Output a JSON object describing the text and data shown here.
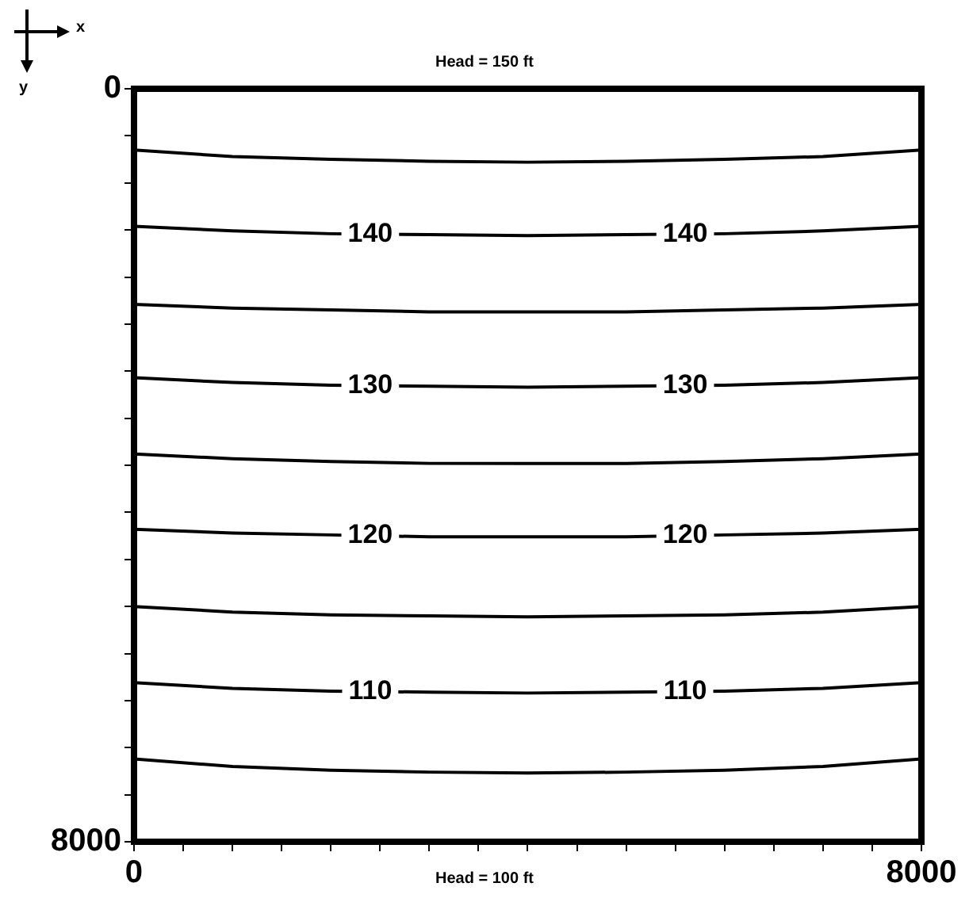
{
  "chart_data": {
    "type": "line",
    "title": "Head = 150 ft",
    "xlabel": "x",
    "ylabel": "y",
    "annotations": [
      "Head = 100 ft"
    ],
    "x": [
      0,
      1000,
      2000,
      3000,
      4000,
      5000,
      6000,
      7000,
      8000
    ],
    "xlim": [
      0,
      8000
    ],
    "ylim": [
      8000,
      0
    ],
    "xticks": [
      0,
      {
        "value": 500,
        "label": null
      },
      {
        "value": 1000,
        "label": null
      },
      {
        "value": 1500,
        "label": null
      },
      {
        "value": 2000,
        "label": null
      },
      {
        "value": 2500,
        "label": null
      },
      {
        "value": 3000,
        "label": null
      },
      {
        "value": 3500,
        "label": null
      },
      {
        "value": 4000,
        "label": null
      },
      {
        "value": 4500,
        "label": null
      },
      {
        "value": 5000,
        "label": null
      },
      {
        "value": 5500,
        "label": null
      },
      {
        "value": 6000,
        "label": null
      },
      {
        "value": 6500,
        "label": null
      },
      {
        "value": 7000,
        "label": null
      },
      {
        "value": 7500,
        "label": null
      },
      8000
    ],
    "yticks": [
      0,
      {
        "value": 500,
        "label": null
      },
      {
        "value": 1000,
        "label": null
      },
      {
        "value": 1500,
        "label": null
      },
      {
        "value": 2000,
        "label": null
      },
      {
        "value": 2500,
        "label": null
      },
      {
        "value": 3000,
        "label": null
      },
      {
        "value": 3500,
        "label": null
      },
      {
        "value": 4000,
        "label": null
      },
      {
        "value": 4500,
        "label": null
      },
      {
        "value": 5000,
        "label": null
      },
      {
        "value": 5500,
        "label": null
      },
      {
        "value": 6000,
        "label": null
      },
      {
        "value": 6500,
        "label": null
      },
      {
        "value": 7000,
        "label": null
      },
      {
        "value": 7500,
        "label": null
      },
      8000
    ],
    "grid": false,
    "legend": false,
    "marker": "none",
    "line_style": "solid",
    "series": [
      {
        "color": "#000000",
        "values": [
          650,
          720,
          750,
          770,
          780,
          770,
          750,
          720,
          650
        ]
      },
      {
        "name": "140",
        "color": "#000000",
        "values": [
          1460,
          1510,
          1540,
          1550,
          1560,
          1550,
          1540,
          1510,
          1460
        ]
      },
      {
        "color": "#000000",
        "values": [
          2290,
          2330,
          2350,
          2370,
          2370,
          2370,
          2350,
          2330,
          2290
        ]
      },
      {
        "name": "130",
        "color": "#000000",
        "values": [
          3070,
          3120,
          3150,
          3160,
          3170,
          3160,
          3150,
          3120,
          3070
        ]
      },
      {
        "color": "#000000",
        "values": [
          3880,
          3930,
          3960,
          3980,
          3980,
          3980,
          3960,
          3930,
          3880
        ]
      },
      {
        "name": "120",
        "color": "#000000",
        "values": [
          4680,
          4720,
          4740,
          4760,
          4760,
          4760,
          4740,
          4720,
          4680
        ]
      },
      {
        "color": "#000000",
        "values": [
          5500,
          5560,
          5590,
          5600,
          5610,
          5600,
          5590,
          5560,
          5500
        ]
      },
      {
        "name": "110",
        "color": "#000000",
        "values": [
          6310,
          6370,
          6400,
          6410,
          6420,
          6410,
          6400,
          6370,
          6310
        ]
      },
      {
        "color": "#000000",
        "values": [
          7120,
          7200,
          7240,
          7260,
          7270,
          7260,
          7240,
          7200,
          7120
        ]
      }
    ]
  }
}
